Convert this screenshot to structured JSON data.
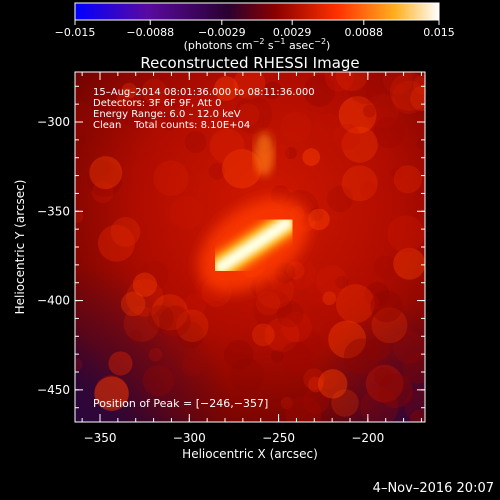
{
  "colorbar": {
    "ticks": [
      "−0.015",
      "−0.0088",
      "−0.0029",
      "0.0029",
      "0.0088",
      "0.015"
    ],
    "tick_values": [
      -0.015,
      -0.0088,
      -0.0029,
      0.0029,
      0.0088,
      0.015
    ],
    "range": [
      -0.015,
      0.015
    ],
    "units_main": "(photons cm",
    "units_exp1": "−2",
    "units_mid": " s",
    "units_exp2": "−1",
    "units_end": " asec",
    "units_exp3": "−2",
    "units_close": ")",
    "colors": [
      "#0000ff",
      "#5a0aa0",
      "#2a0030",
      "#8a0000",
      "#ff3000",
      "#ffb020",
      "#ffffff"
    ]
  },
  "title": "Reconstructed RHESSI Image",
  "info": {
    "line1": "15–Aug–2014 08:01:36.000 to 08:11:36.000",
    "line2": "Detectors: 3F 6F 9F, Att 0",
    "line3": "Energy Range: 6.0 – 12.0 keV",
    "line4": "Clean    Total counts: 8.10E+04"
  },
  "peak_label": "Position of Peak = [−246,−357]",
  "footer_date": "4–Nov–2016 20:07",
  "chart_data": {
    "type": "heatmap",
    "title": "Reconstructed RHESSI Image",
    "xlabel": "Heliocentric X (arcsec)",
    "ylabel": "Heliocentric Y (arcsec)",
    "xlim": [
      -364,
      -168
    ],
    "ylim": [
      -468,
      -272
    ],
    "x_ticks": [
      -350,
      -300,
      -250,
      -200
    ],
    "x_tick_labels": [
      "−350",
      "−300",
      "−250",
      "−200"
    ],
    "y_ticks": [
      -450,
      -400,
      -350,
      -300
    ],
    "y_tick_labels": [
      "−450",
      "−400",
      "−350",
      "−300"
    ],
    "peak": [
      -246,
      -357
    ],
    "source": {
      "ridge_start": [
        -282,
        -381
      ],
      "ridge_end": [
        -246,
        -357
      ],
      "secondary": [
        -258,
        -318
      ]
    },
    "colorbar_range": [
      -0.015,
      0.015
    ]
  }
}
